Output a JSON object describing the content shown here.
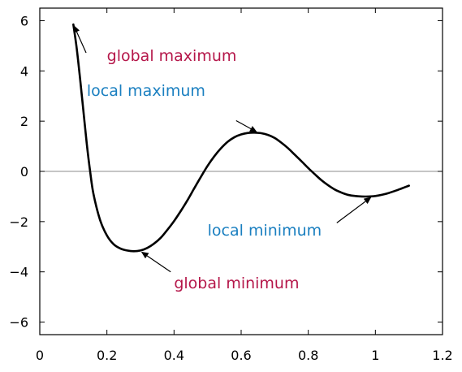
{
  "chart_data": {
    "type": "line",
    "title": "",
    "xlabel": "",
    "ylabel": "",
    "xlim": [
      0,
      1.2
    ],
    "ylim": [
      -6.5,
      6.5
    ],
    "grid": false,
    "zero_line": true,
    "x_ticks": [
      0,
      0.2,
      0.4,
      0.6,
      0.8,
      1,
      1.2
    ],
    "x_tick_labels": [
      "0",
      "0.2",
      "0.4",
      "0.6",
      "0.8",
      "1",
      "1.2"
    ],
    "y_ticks": [
      6,
      4,
      2,
      0,
      -2,
      -4,
      -6
    ],
    "y_tick_labels": [
      "6",
      "4",
      "2",
      "0",
      "−2",
      "−4",
      "−6"
    ],
    "series": [
      {
        "color": "#000000",
        "points": [
          [
            0.1,
            5.85
          ],
          [
            0.11,
            4.9
          ],
          [
            0.12,
            3.7
          ],
          [
            0.13,
            2.4
          ],
          [
            0.14,
            1.1
          ],
          [
            0.15,
            0.0
          ],
          [
            0.16,
            -0.9
          ],
          [
            0.18,
            -1.95
          ],
          [
            0.2,
            -2.55
          ],
          [
            0.22,
            -2.9
          ],
          [
            0.24,
            -3.07
          ],
          [
            0.26,
            -3.15
          ],
          [
            0.28,
            -3.18
          ],
          [
            0.3,
            -3.15
          ],
          [
            0.32,
            -3.05
          ],
          [
            0.34,
            -2.88
          ],
          [
            0.36,
            -2.65
          ],
          [
            0.38,
            -2.33
          ],
          [
            0.4,
            -1.98
          ],
          [
            0.42,
            -1.58
          ],
          [
            0.44,
            -1.15
          ],
          [
            0.46,
            -0.68
          ],
          [
            0.48,
            -0.22
          ],
          [
            0.5,
            0.22
          ],
          [
            0.52,
            0.6
          ],
          [
            0.54,
            0.92
          ],
          [
            0.56,
            1.18
          ],
          [
            0.58,
            1.36
          ],
          [
            0.6,
            1.47
          ],
          [
            0.62,
            1.53
          ],
          [
            0.64,
            1.54
          ],
          [
            0.66,
            1.52
          ],
          [
            0.68,
            1.45
          ],
          [
            0.7,
            1.33
          ],
          [
            0.72,
            1.14
          ],
          [
            0.74,
            0.92
          ],
          [
            0.76,
            0.66
          ],
          [
            0.78,
            0.4
          ],
          [
            0.8,
            0.13
          ],
          [
            0.82,
            -0.12
          ],
          [
            0.84,
            -0.36
          ],
          [
            0.86,
            -0.56
          ],
          [
            0.88,
            -0.73
          ],
          [
            0.9,
            -0.85
          ],
          [
            0.92,
            -0.94
          ],
          [
            0.94,
            -0.98
          ],
          [
            0.96,
            -1.0
          ],
          [
            0.98,
            -1.0
          ],
          [
            1.0,
            -0.98
          ],
          [
            1.02,
            -0.93
          ],
          [
            1.04,
            -0.86
          ],
          [
            1.06,
            -0.77
          ],
          [
            1.08,
            -0.67
          ],
          [
            1.1,
            -0.57
          ]
        ]
      }
    ],
    "annotations": [
      {
        "text": "global maximum",
        "color": "#b5174a",
        "point": [
          0.1,
          5.85
        ],
        "text_at": [
          0.2,
          4.4
        ]
      },
      {
        "text": "local maximum",
        "color": "#1a7fc0",
        "point": [
          0.65,
          1.54
        ],
        "text_at": [
          0.14,
          3.0
        ]
      },
      {
        "text": "local minimum",
        "color": "#1a7fc0",
        "point": [
          0.99,
          -1.0
        ],
        "text_at": [
          0.5,
          -2.55
        ]
      },
      {
        "text": "global minimum",
        "color": "#b5174a",
        "point": [
          0.3,
          -3.18
        ],
        "text_at": [
          0.4,
          -4.65
        ]
      }
    ]
  }
}
